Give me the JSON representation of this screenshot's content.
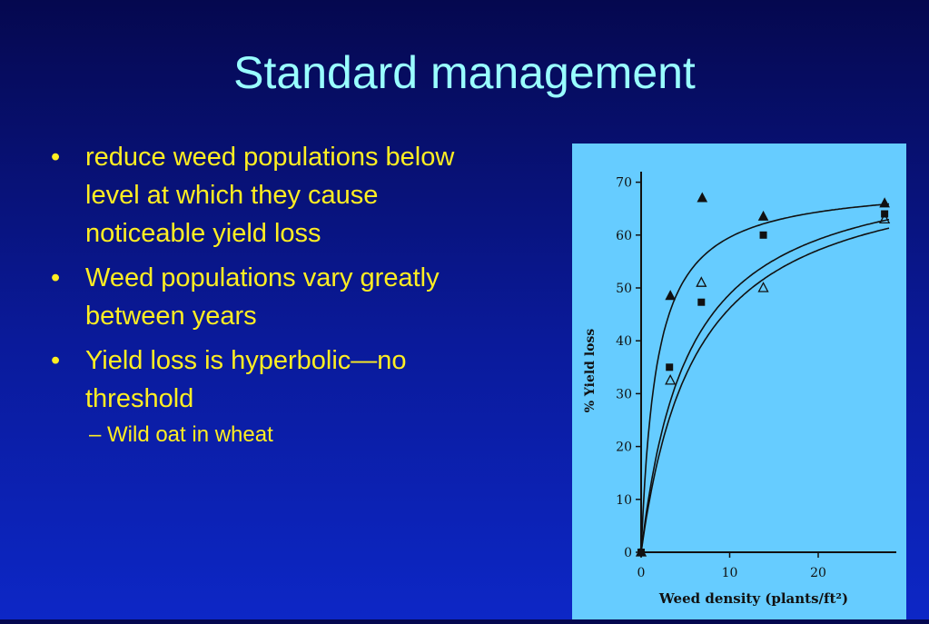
{
  "slide": {
    "title": "Standard management",
    "bullets": [
      "reduce weed populations below level at which they cause noticeable yield loss",
      "Weed populations vary greatly between years",
      "Yield loss is hyperbolic—no threshold"
    ],
    "sub_bullet": "Wild oat in wheat",
    "colors": {
      "title": "#99ffff",
      "text": "#ffee22",
      "chart_bg": "#66ccff"
    }
  },
  "chart_data": {
    "type": "scatter",
    "xlabel": "Weed density (plants/ft²)",
    "ylabel": "% Yield loss",
    "xlim": [
      0,
      28
    ],
    "ylim": [
      0,
      72
    ],
    "xticks": [
      0,
      10,
      20
    ],
    "yticks": [
      0,
      10,
      20,
      30,
      40,
      50,
      60,
      70
    ],
    "grid": false,
    "series": [
      {
        "marker": "filled-triangle",
        "points": [
          [
            0,
            0
          ],
          [
            3.3,
            48.5
          ],
          [
            6.9,
            67
          ],
          [
            13.8,
            63.5
          ],
          [
            27.5,
            66
          ]
        ],
        "curve": {
          "I": 40,
          "A": 70
        }
      },
      {
        "marker": "filled-square",
        "points": [
          [
            0,
            0
          ],
          [
            3.2,
            35
          ],
          [
            6.8,
            47.3
          ],
          [
            13.8,
            60
          ],
          [
            27.5,
            64
          ]
        ],
        "curve": {
          "I": 14,
          "A": 75
        }
      },
      {
        "marker": "open-triangle",
        "points": [
          [
            0,
            0
          ],
          [
            3.3,
            32.5
          ],
          [
            6.8,
            51
          ],
          [
            13.8,
            50
          ],
          [
            27.5,
            63
          ]
        ],
        "curve": {
          "I": 12,
          "A": 75
        }
      }
    ]
  }
}
